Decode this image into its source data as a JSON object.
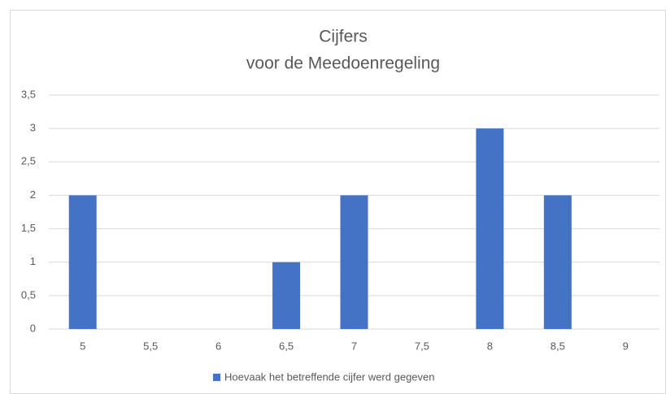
{
  "chart_data": {
    "type": "bar",
    "title": [
      "Cijfers",
      "voor de Meedoenregeling"
    ],
    "categories": [
      "5",
      "5,5",
      "6",
      "6,5",
      "7",
      "7,5",
      "8",
      "8,5",
      "9"
    ],
    "series": [
      {
        "name": "Hoevaak het betreffende cijfer werd gegeven",
        "color": "#4472c4",
        "values": [
          2,
          0,
          0,
          1,
          2,
          0,
          3,
          2,
          0
        ]
      }
    ],
    "ylim": [
      0,
      3.5
    ],
    "yticks": [
      0,
      {
        "value": 0.5,
        "label": "0,5"
      },
      1,
      {
        "value": 1.5,
        "label": "1,5"
      },
      2,
      {
        "value": 2.5,
        "label": "2,5"
      },
      3,
      {
        "value": 3.5,
        "label": "3,5"
      }
    ],
    "grid": true,
    "legend": "bottom"
  }
}
